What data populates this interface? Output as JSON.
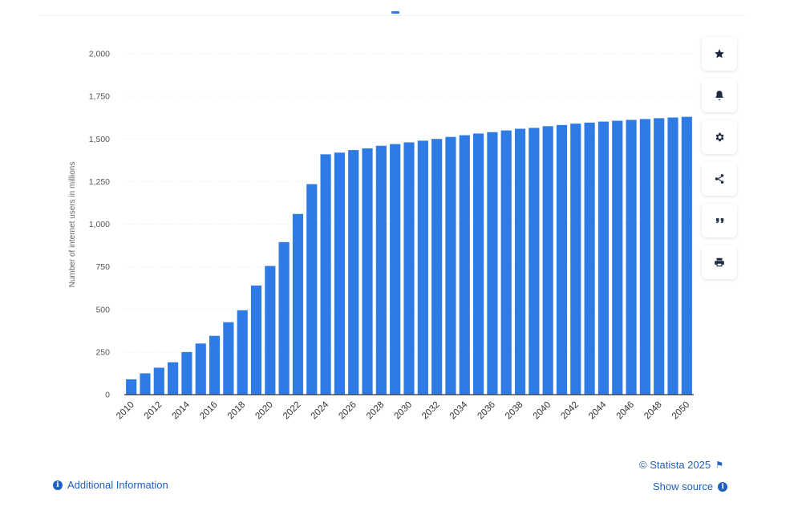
{
  "chart_data": {
    "type": "bar",
    "ylabel": "Number of internet users in millions",
    "ylim": [
      0,
      2000
    ],
    "yticks": [
      0,
      250,
      500,
      750,
      1000,
      1250,
      1500,
      1750,
      2000
    ],
    "ytick_labels": [
      "0",
      "250",
      "500",
      "750",
      "1,000",
      "1,250",
      "1,500",
      "1,750",
      "2,000"
    ],
    "categories": [
      "2010",
      "2011",
      "2012",
      "2013",
      "2014",
      "2015",
      "2016",
      "2017",
      "2018",
      "2019",
      "2020",
      "2021",
      "2022",
      "2023",
      "2024",
      "2025",
      "2026",
      "2027",
      "2028",
      "2029",
      "2030",
      "2031",
      "2032",
      "2033",
      "2034",
      "2035",
      "2036",
      "2037",
      "2038",
      "2039",
      "2040",
      "2041",
      "2042",
      "2043",
      "2044",
      "2045",
      "2046",
      "2047",
      "2048",
      "2049",
      "2050"
    ],
    "xtick_labels": [
      "2010",
      "",
      "2012",
      "",
      "2014",
      "",
      "2016",
      "",
      "2018",
      "",
      "2020",
      "",
      "2022",
      "",
      "2024",
      "",
      "2026",
      "",
      "2028",
      "",
      "2030",
      "",
      "2032",
      "",
      "2034",
      "",
      "2036",
      "",
      "2038",
      "",
      "2040",
      "",
      "2042",
      "",
      "2044",
      "",
      "2046",
      "",
      "2048",
      "",
      "2050"
    ],
    "values": [
      90,
      125,
      158,
      190,
      250,
      300,
      345,
      425,
      495,
      640,
      755,
      895,
      1060,
      1235,
      1410,
      1420,
      1435,
      1445,
      1460,
      1470,
      1480,
      1490,
      1500,
      1512,
      1522,
      1532,
      1540,
      1550,
      1560,
      1565,
      1575,
      1582,
      1590,
      1596,
      1602,
      1607,
      1612,
      1617,
      1622,
      1626,
      1630
    ],
    "bar_color": "#2f7be5",
    "grid": true,
    "legend": "none"
  },
  "toolbar": {
    "buttons": [
      {
        "icon": "star-icon"
      },
      {
        "icon": "bell-icon"
      },
      {
        "icon": "gear-icon"
      },
      {
        "icon": "share-icon"
      },
      {
        "icon": "quote-icon"
      },
      {
        "icon": "print-icon"
      }
    ]
  },
  "footer": {
    "copyright": "© Statista 2025",
    "show_source": "Show source",
    "additional_info": "Additional Information",
    "link_color": "#1f5fbf"
  }
}
